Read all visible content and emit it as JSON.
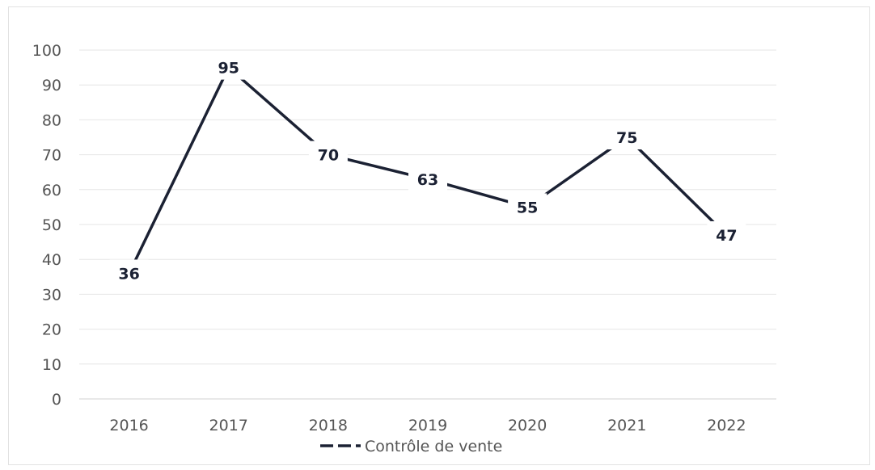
{
  "chart_data": {
    "type": "line",
    "categories": [
      "2016",
      "2017",
      "2018",
      "2019",
      "2020",
      "2021",
      "2022"
    ],
    "series": [
      {
        "name": "Contrôle de vente",
        "values": [
          36,
          95,
          70,
          63,
          55,
          75,
          47
        ],
        "color": "#1b2133"
      }
    ],
    "ylim": [
      0,
      100
    ],
    "yticks": [
      0,
      10,
      20,
      30,
      40,
      50,
      60,
      70,
      80,
      90,
      100
    ],
    "grid": true,
    "legend_position": "bottom",
    "data_labels": true
  }
}
